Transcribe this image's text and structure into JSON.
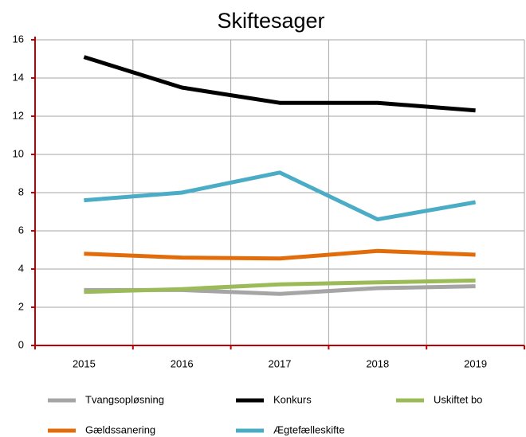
{
  "chart_data": {
    "type": "line",
    "title": "Skiftesager",
    "categories": [
      "2015",
      "2016",
      "2017",
      "2018",
      "2019"
    ],
    "series": [
      {
        "name": "Tvangsopløsning",
        "color": "#a5a5a5",
        "values": [
          2.9,
          2.9,
          2.7,
          3.0,
          3.1
        ]
      },
      {
        "name": "Konkurs",
        "color": "#000000",
        "values": [
          15.1,
          13.5,
          12.7,
          12.7,
          12.3
        ]
      },
      {
        "name": "Uskiftet bo",
        "color": "#9bbb59",
        "values": [
          2.8,
          2.95,
          3.2,
          3.3,
          3.4
        ]
      },
      {
        "name": "Gældssanering",
        "color": "#e36c0a",
        "values": [
          4.8,
          4.6,
          4.55,
          4.95,
          4.75
        ]
      },
      {
        "name": "Ægtefælleskifte",
        "color": "#4bacc6",
        "values": [
          7.6,
          8.0,
          9.05,
          6.6,
          7.5
        ]
      }
    ],
    "ylim": [
      0,
      16
    ],
    "yticks": [
      0,
      2,
      4,
      6,
      8,
      10,
      12,
      14,
      16
    ],
    "grid": true
  }
}
